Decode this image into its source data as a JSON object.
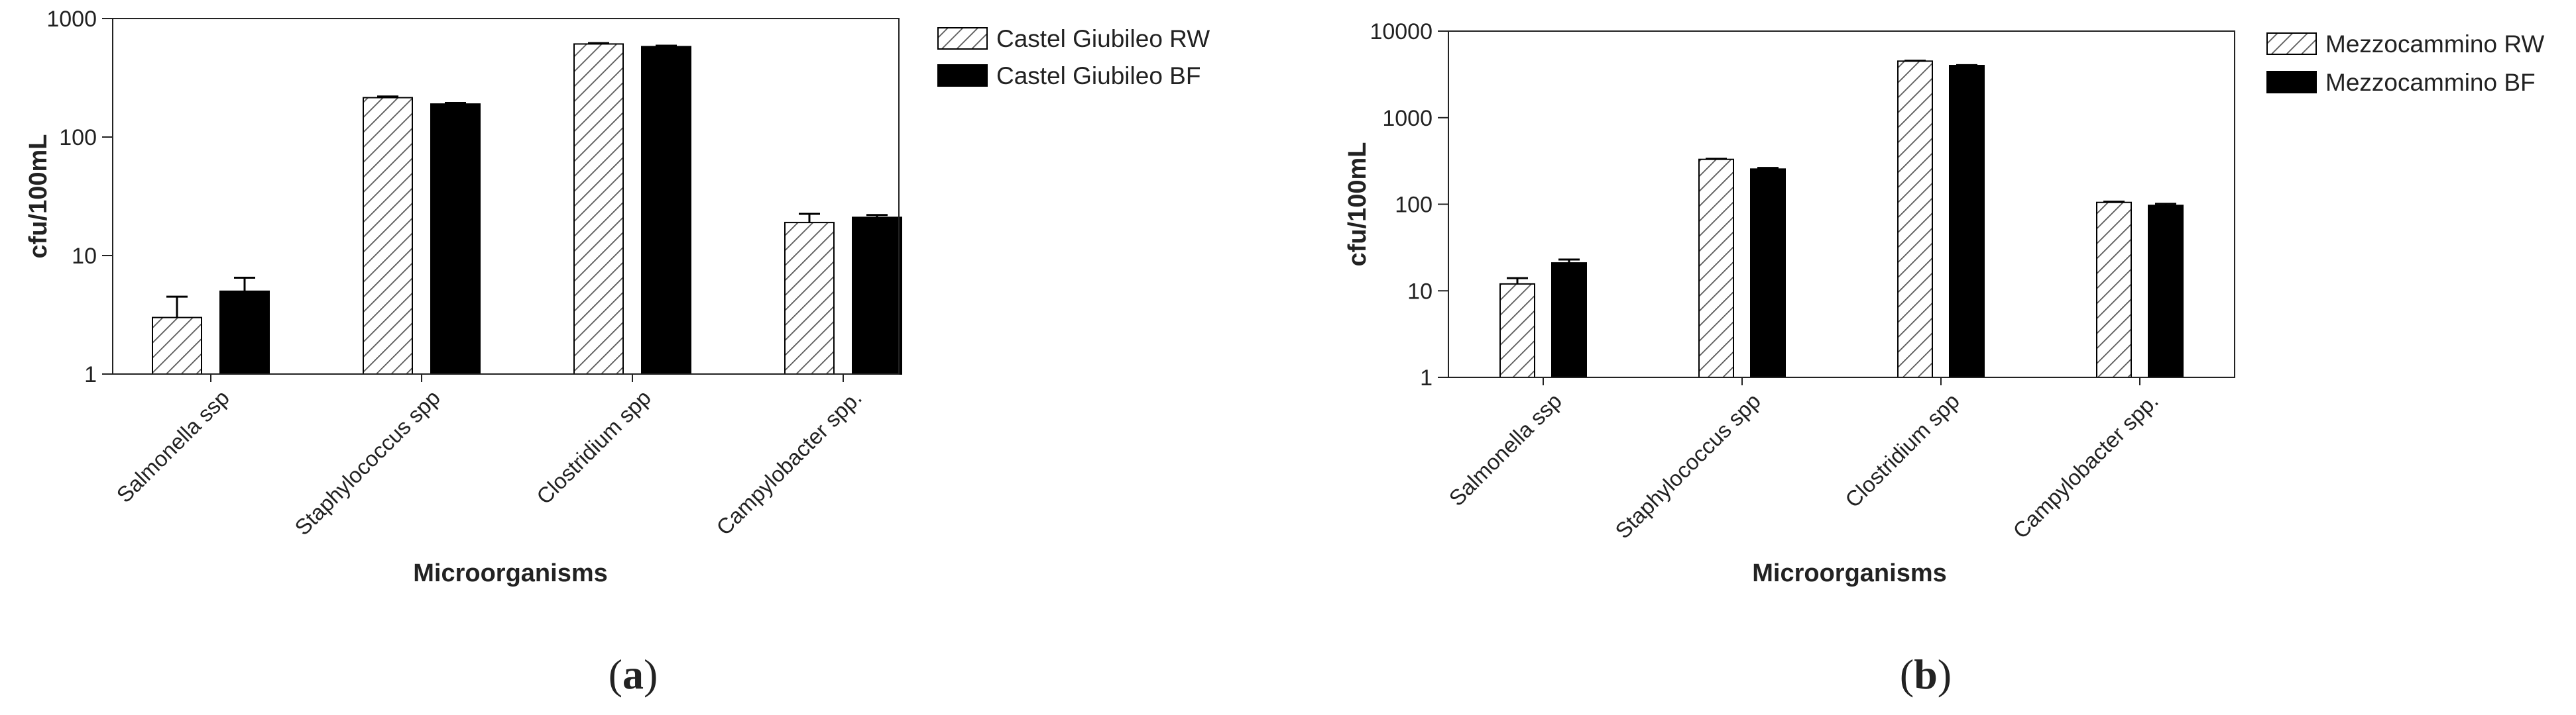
{
  "chart_data": [
    {
      "type": "bar",
      "panel_label": "a",
      "categories": [
        "Salmonella ssp",
        "Staphylococcus spp",
        "Clostridium spp",
        "Campylobacter spp."
      ],
      "series": [
        {
          "name": "Castel Giubileo RW",
          "values": [
            3,
            215,
            610,
            19
          ],
          "errors": [
            1.5,
            5,
            10,
            3.5
          ]
        },
        {
          "name": "Castel Giubileo BF",
          "values": [
            5,
            190,
            580,
            21
          ],
          "errors": [
            1.5,
            4,
            10,
            1
          ]
        }
      ],
      "xlabel": "Microorganisms",
      "ylabel": "cfu/100mL",
      "yscale": "log",
      "ylim": [
        1,
        1000
      ],
      "yticks": [
        1,
        10,
        100,
        1000
      ],
      "ytick_labels": [
        "1",
        "10",
        "100",
        "1000"
      ],
      "grid": false,
      "legend_position": "top-right, outside plot"
    },
    {
      "type": "bar",
      "panel_label": "b",
      "categories": [
        "Salmonella ssp",
        "Staphylococcus spp",
        "Clostridium spp",
        "Campylobacter spp."
      ],
      "series": [
        {
          "name": "Mezzocammino  RW",
          "values": [
            12,
            330,
            4500,
            105
          ],
          "errors": [
            2,
            5,
            50,
            2
          ]
        },
        {
          "name": "Mezzocammino  BF",
          "values": [
            21,
            255,
            4000,
            97
          ],
          "errors": [
            2,
            8,
            50,
            4
          ]
        }
      ],
      "xlabel": "Microorganisms",
      "ylabel": "cfu/100mL",
      "yscale": "log",
      "ylim": [
        1,
        10000
      ],
      "yticks": [
        1,
        10,
        100,
        1000,
        10000
      ],
      "ytick_labels": [
        "1",
        "10",
        "100",
        "1000",
        "10000"
      ],
      "grid": false,
      "legend_position": "top-right, outside plot"
    }
  ],
  "colors": {
    "rw_fill": "#ffffff",
    "rw_hatch": "#555555",
    "bf_fill": "#000000",
    "axis": "#222222"
  }
}
